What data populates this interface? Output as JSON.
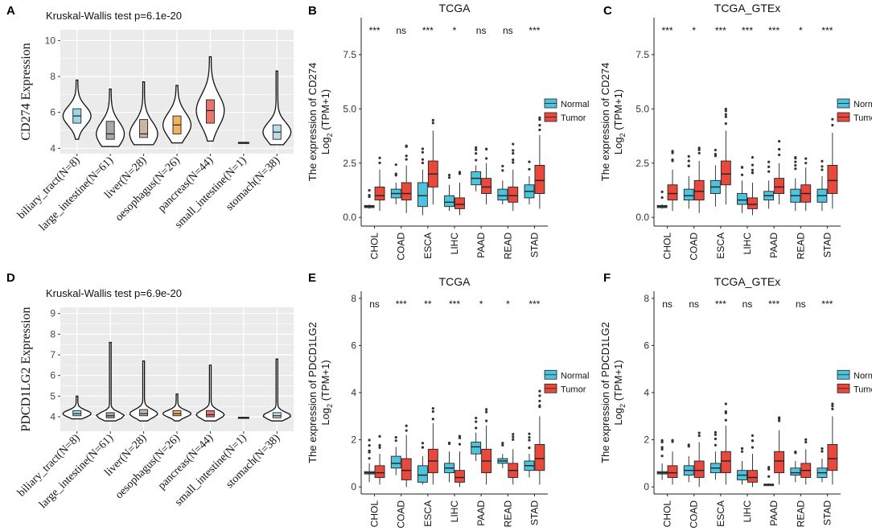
{
  "figure": {
    "panel_letters": [
      "A",
      "B",
      "C",
      "D",
      "E",
      "F"
    ]
  },
  "colors": {
    "normal": "#4ec3de",
    "tumor": "#e8493c",
    "grid_bg": "#ebebeb",
    "grid_line": "#ffffff",
    "violin_fills": [
      "#9ad8e8",
      "#a8a8a8",
      "#c8b6a6",
      "#f2b264",
      "#e8746a",
      "#777777",
      "#bcdde8"
    ]
  },
  "chart_data": [
    {
      "panel": "A",
      "type": "violin",
      "title": "Kruskal-Wallis test p=6.1e-20",
      "ylabel": "CD274 Expression",
      "ylim": [
        3.7,
        10.6
      ],
      "yticks": [
        4,
        6,
        8,
        10
      ],
      "categories": [
        "biliary_tract(N=8)",
        "large_intestine(N=61)",
        "liver(N=28)",
        "oesophagus(N=26)",
        "pancreas(N=44)",
        "small_intestine(N=1)",
        "stomach(N=38)"
      ],
      "groups": [
        {
          "min": 4.5,
          "q1": 5.4,
          "median": 5.8,
          "q3": 6.2,
          "max": 7.8
        },
        {
          "min": 4.1,
          "q1": 4.5,
          "median": 4.8,
          "q3": 5.5,
          "max": 7.3
        },
        {
          "min": 4.2,
          "q1": 4.6,
          "median": 4.8,
          "q3": 5.6,
          "max": 7.7
        },
        {
          "min": 4.3,
          "q1": 4.8,
          "median": 5.3,
          "q3": 5.8,
          "max": 7.5
        },
        {
          "min": 4.4,
          "q1": 5.4,
          "median": 6.1,
          "q3": 6.7,
          "max": 9.1
        },
        {
          "min": 4.3,
          "q1": 4.3,
          "median": 4.3,
          "q3": 4.3,
          "max": 4.3
        },
        {
          "min": 4.2,
          "q1": 4.5,
          "median": 4.9,
          "q3": 5.3,
          "max": 8.3
        }
      ]
    },
    {
      "panel": "B",
      "type": "box",
      "title": "TCGA",
      "ylabel_line1": "The expression of CD274",
      "ylabel_line2_prefix": "Log",
      "ylabel_line2_sub": "2",
      "ylabel_line2_suffix": " (TPM+1)",
      "ylim": [
        -0.4,
        9.2
      ],
      "yticks": [
        "0.0",
        "2.5",
        "5.0",
        "7.5"
      ],
      "ytick_values": [
        0,
        2.5,
        5,
        7.5
      ],
      "categories": [
        "CHOL",
        "COAD",
        "ESCA",
        "LIHC",
        "PAAD",
        "READ",
        "STAD"
      ],
      "significance": [
        "***",
        "ns",
        "***",
        "*",
        "ns",
        "ns",
        "***"
      ],
      "legend": [
        "Normal",
        "Tumor"
      ],
      "series": [
        {
          "name": "Normal",
          "boxes": [
            {
              "min": 0.4,
              "q1": 0.45,
              "median": 0.5,
              "q3": 0.55,
              "max": 0.6
            },
            {
              "min": 0.6,
              "q1": 0.9,
              "median": 1.1,
              "q3": 1.3,
              "max": 1.6
            },
            {
              "min": 0.1,
              "q1": 0.5,
              "median": 1.0,
              "q3": 1.6,
              "max": 2.2
            },
            {
              "min": 0.3,
              "q1": 0.5,
              "median": 0.7,
              "q3": 1.0,
              "max": 1.5
            },
            {
              "min": 1.2,
              "q1": 1.5,
              "median": 1.8,
              "q3": 2.1,
              "max": 2.4
            },
            {
              "min": 0.6,
              "q1": 0.8,
              "median": 1.0,
              "q3": 1.3,
              "max": 1.7
            },
            {
              "min": 0.6,
              "q1": 0.9,
              "median": 1.2,
              "q3": 1.5,
              "max": 1.9
            }
          ]
        },
        {
          "name": "Tumor",
          "boxes": [
            {
              "min": 0.3,
              "q1": 0.8,
              "median": 1.0,
              "q3": 1.4,
              "max": 2.2
            },
            {
              "min": 0.2,
              "q1": 0.8,
              "median": 1.1,
              "q3": 1.6,
              "max": 2.4
            },
            {
              "min": 0.6,
              "q1": 1.4,
              "median": 2.0,
              "q3": 2.6,
              "max": 4.0
            },
            {
              "min": 0.1,
              "q1": 0.4,
              "median": 0.6,
              "q3": 0.9,
              "max": 1.6
            },
            {
              "min": 0.6,
              "q1": 1.1,
              "median": 1.4,
              "q3": 1.8,
              "max": 2.5
            },
            {
              "min": 0.3,
              "q1": 0.7,
              "median": 1.0,
              "q3": 1.4,
              "max": 2.2
            },
            {
              "min": 0.4,
              "q1": 1.1,
              "median": 1.7,
              "q3": 2.4,
              "max": 3.8
            }
          ]
        }
      ]
    },
    {
      "panel": "C",
      "type": "box",
      "title": "TCGA_GTEx",
      "ylabel_line1": "The expression of CD274",
      "ylabel_line2_prefix": "Log",
      "ylabel_line2_sub": "2",
      "ylabel_line2_suffix": " (TPM+1)",
      "ylim": [
        -0.4,
        9.2
      ],
      "yticks": [
        "0.0",
        "2.5",
        "5.0",
        "7.5"
      ],
      "ytick_values": [
        0,
        2.5,
        5,
        7.5
      ],
      "categories": [
        "CHOL",
        "COAD",
        "ESCA",
        "LIHC",
        "PAAD",
        "READ",
        "STAD"
      ],
      "significance": [
        "***",
        "*",
        "***",
        "***",
        "***",
        "*",
        "***"
      ],
      "legend": [
        "Normal",
        "Tumor"
      ],
      "series": [
        {
          "name": "Normal",
          "boxes": [
            {
              "min": 0.4,
              "q1": 0.45,
              "median": 0.5,
              "q3": 0.55,
              "max": 0.6
            },
            {
              "min": 0.4,
              "q1": 0.8,
              "median": 1.0,
              "q3": 1.3,
              "max": 1.9
            },
            {
              "min": 0.5,
              "q1": 1.1,
              "median": 1.4,
              "q3": 1.7,
              "max": 2.4
            },
            {
              "min": 0.2,
              "q1": 0.6,
              "median": 0.8,
              "q3": 1.1,
              "max": 1.7
            },
            {
              "min": 0.4,
              "q1": 0.8,
              "median": 1.0,
              "q3": 1.2,
              "max": 1.7
            },
            {
              "min": 0.3,
              "q1": 0.7,
              "median": 1.0,
              "q3": 1.3,
              "max": 1.8
            },
            {
              "min": 0.3,
              "q1": 0.7,
              "median": 1.0,
              "q3": 1.3,
              "max": 1.9
            }
          ]
        },
        {
          "name": "Tumor",
          "boxes": [
            {
              "min": 0.3,
              "q1": 0.8,
              "median": 1.1,
              "q3": 1.5,
              "max": 2.2
            },
            {
              "min": 0.2,
              "q1": 0.8,
              "median": 1.2,
              "q3": 1.7,
              "max": 2.6
            },
            {
              "min": 0.6,
              "q1": 1.5,
              "median": 2.0,
              "q3": 2.6,
              "max": 4.0
            },
            {
              "min": 0.1,
              "q1": 0.4,
              "median": 0.6,
              "q3": 0.9,
              "max": 1.6
            },
            {
              "min": 0.6,
              "q1": 1.1,
              "median": 1.4,
              "q3": 1.8,
              "max": 2.5
            },
            {
              "min": 0.3,
              "q1": 0.7,
              "median": 1.1,
              "q3": 1.5,
              "max": 2.3
            },
            {
              "min": 0.4,
              "q1": 1.1,
              "median": 1.7,
              "q3": 2.4,
              "max": 3.9
            }
          ]
        }
      ]
    },
    {
      "panel": "D",
      "type": "violin",
      "title": "Kruskal-Wallis test p=6.9e-20",
      "ylabel": "PDCD1LG2 Expression",
      "ylim": [
        3.3,
        9.3
      ],
      "yticks": [
        4,
        5,
        6,
        7,
        8,
        9
      ],
      "categories": [
        "biliary_tract(N=8)",
        "large_intestine(N=61)",
        "liver(N=28)",
        "oesophagus(N=26)",
        "pancreas(N=44)",
        "small_intestine(N=1)",
        "stomach(N=38)"
      ],
      "groups": [
        {
          "min": 3.9,
          "q1": 4.05,
          "median": 4.15,
          "q3": 4.3,
          "max": 5.0
        },
        {
          "min": 3.8,
          "q1": 3.95,
          "median": 4.05,
          "q3": 4.2,
          "max": 7.6
        },
        {
          "min": 3.8,
          "q1": 4.05,
          "median": 4.15,
          "q3": 4.35,
          "max": 6.7
        },
        {
          "min": 3.8,
          "q1": 4.05,
          "median": 4.15,
          "q3": 4.3,
          "max": 5.1
        },
        {
          "min": 3.8,
          "q1": 4.0,
          "median": 4.1,
          "q3": 4.3,
          "max": 6.5
        },
        {
          "min": 3.95,
          "q1": 3.95,
          "median": 3.95,
          "q3": 3.95,
          "max": 3.95
        },
        {
          "min": 3.8,
          "q1": 3.95,
          "median": 4.05,
          "q3": 4.2,
          "max": 6.8
        }
      ]
    },
    {
      "panel": "E",
      "type": "box",
      "title": "TCGA",
      "ylabel_line1": "The expression of PDCD1LG2",
      "ylabel_line2_prefix": "Log",
      "ylabel_line2_sub": "2",
      "ylabel_line2_suffix": " (TPM+1)",
      "ylim": [
        -0.3,
        8.3
      ],
      "yticks": [
        "0",
        "2",
        "4",
        "6",
        "8"
      ],
      "ytick_values": [
        0,
        2,
        4,
        6,
        8
      ],
      "categories": [
        "CHOL",
        "COAD",
        "ESCA",
        "LIHC",
        "PAAD",
        "READ",
        "STAD"
      ],
      "significance": [
        "ns",
        "***",
        "**",
        "***",
        "*",
        "*",
        "***"
      ],
      "legend": [
        "Normal",
        "Tumor"
      ],
      "series": [
        {
          "name": "Normal",
          "boxes": [
            {
              "min": 0.2,
              "q1": 0.55,
              "median": 0.6,
              "q3": 0.65,
              "max": 1.0
            },
            {
              "min": 0.5,
              "q1": 0.8,
              "median": 1.0,
              "q3": 1.3,
              "max": 1.7
            },
            {
              "min": 0.1,
              "q1": 0.2,
              "median": 0.5,
              "q3": 0.9,
              "max": 1.3
            },
            {
              "min": 0.2,
              "q1": 0.6,
              "median": 0.8,
              "q3": 1.0,
              "max": 1.5
            },
            {
              "min": 1.1,
              "q1": 1.4,
              "median": 1.7,
              "q3": 1.9,
              "max": 2.3
            },
            {
              "min": 0.8,
              "q1": 1.0,
              "median": 1.1,
              "q3": 1.2,
              "max": 1.4
            },
            {
              "min": 0.4,
              "q1": 0.7,
              "median": 0.9,
              "q3": 1.1,
              "max": 1.4
            }
          ]
        },
        {
          "name": "Tumor",
          "boxes": [
            {
              "min": 0.1,
              "q1": 0.4,
              "median": 0.6,
              "q3": 0.9,
              "max": 1.4
            },
            {
              "min": 0.0,
              "q1": 0.3,
              "median": 0.7,
              "q3": 1.2,
              "max": 2.2
            },
            {
              "min": 0.1,
              "q1": 0.6,
              "median": 1.1,
              "q3": 1.6,
              "max": 2.7
            },
            {
              "min": 0.0,
              "q1": 0.2,
              "median": 0.4,
              "q3": 0.7,
              "max": 1.5
            },
            {
              "min": 0.1,
              "q1": 0.6,
              "median": 1.1,
              "q3": 1.6,
              "max": 2.6
            },
            {
              "min": 0.1,
              "q1": 0.4,
              "median": 0.7,
              "q3": 1.0,
              "max": 1.6
            },
            {
              "min": 0.1,
              "q1": 0.7,
              "median": 1.2,
              "q3": 1.8,
              "max": 3.0
            }
          ]
        }
      ]
    },
    {
      "panel": "F",
      "type": "box",
      "title": "TCGA_GTEx",
      "ylabel_line1": "The expression of PDCD1LG2",
      "ylabel_line2_prefix": "Log",
      "ylabel_line2_sub": "2",
      "ylabel_line2_suffix": " (TPM+1)",
      "ylim": [
        -0.3,
        8.3
      ],
      "yticks": [
        "0",
        "2",
        "4",
        "6",
        "8"
      ],
      "ytick_values": [
        0,
        2,
        4,
        6,
        8
      ],
      "categories": [
        "CHOL",
        "COAD",
        "ESCA",
        "LIHC",
        "PAAD",
        "READ",
        "STAD"
      ],
      "significance": [
        "ns",
        "ns",
        "***",
        "ns",
        "***",
        "ns",
        "***"
      ],
      "legend": [
        "Normal",
        "Tumor"
      ],
      "series": [
        {
          "name": "Normal",
          "boxes": [
            {
              "min": 0.3,
              "q1": 0.55,
              "median": 0.6,
              "q3": 0.65,
              "max": 1.0
            },
            {
              "min": 0.2,
              "q1": 0.5,
              "median": 0.7,
              "q3": 0.9,
              "max": 1.3
            },
            {
              "min": 0.3,
              "q1": 0.6,
              "median": 0.8,
              "q3": 1.0,
              "max": 1.5
            },
            {
              "min": 0.1,
              "q1": 0.3,
              "median": 0.5,
              "q3": 0.7,
              "max": 1.1
            },
            {
              "min": 0.05,
              "q1": 0.08,
              "median": 0.1,
              "q3": 0.12,
              "max": 0.15
            },
            {
              "min": 0.2,
              "q1": 0.5,
              "median": 0.6,
              "q3": 0.8,
              "max": 1.1
            },
            {
              "min": 0.2,
              "q1": 0.4,
              "median": 0.6,
              "q3": 0.8,
              "max": 1.2
            }
          ]
        },
        {
          "name": "Tumor",
          "boxes": [
            {
              "min": 0.1,
              "q1": 0.4,
              "median": 0.6,
              "q3": 0.9,
              "max": 1.5
            },
            {
              "min": 0.0,
              "q1": 0.4,
              "median": 0.7,
              "q3": 1.1,
              "max": 1.9
            },
            {
              "min": 0.1,
              "q1": 0.6,
              "median": 1.1,
              "q3": 1.5,
              "max": 2.6
            },
            {
              "min": 0.0,
              "q1": 0.2,
              "median": 0.4,
              "q3": 0.7,
              "max": 1.4
            },
            {
              "min": 0.1,
              "q1": 0.6,
              "median": 1.1,
              "q3": 1.5,
              "max": 2.4
            },
            {
              "min": 0.1,
              "q1": 0.4,
              "median": 0.7,
              "q3": 1.0,
              "max": 1.6
            },
            {
              "min": 0.1,
              "q1": 0.7,
              "median": 1.2,
              "q3": 1.8,
              "max": 3.0
            }
          ]
        }
      ]
    }
  ]
}
